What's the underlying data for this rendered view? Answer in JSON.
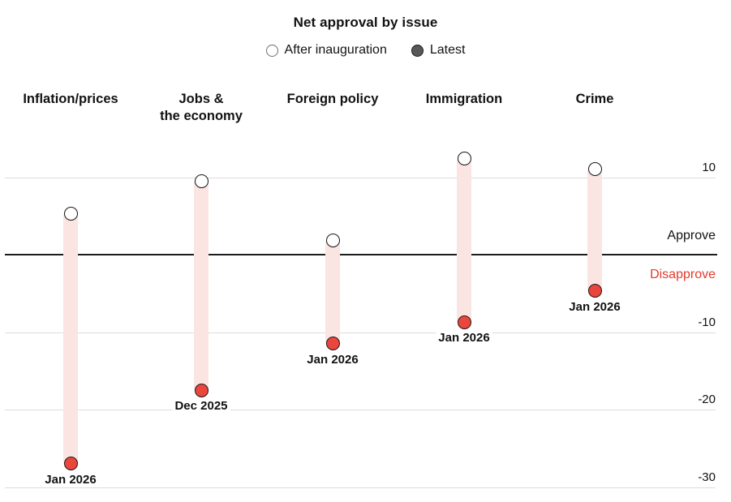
{
  "title": "Net approval by issue",
  "legend": {
    "after_label": "After inauguration",
    "latest_label": "Latest"
  },
  "axis": {
    "yticks": [
      10,
      -10,
      -20,
      -30
    ],
    "approve_label": "Approve",
    "disapprove_label": "Disapprove"
  },
  "chart_data": {
    "type": "scatter",
    "variant": "dumbbell",
    "title": "Net approval by issue",
    "categories": [
      "Inflation/prices",
      "Jobs &\nthe economy",
      "Foreign policy",
      "Immigration",
      "Crime"
    ],
    "series": [
      {
        "name": "After inauguration",
        "values": [
          5.3,
          9.5,
          1.8,
          12.4,
          11.0
        ]
      },
      {
        "name": "Latest",
        "values": [
          -27.0,
          -17.5,
          -11.5,
          -8.7,
          -4.7
        ]
      }
    ],
    "point_labels": [
      "Jan 2026",
      "Dec 2025",
      "Jan 2026",
      "Jan 2026",
      "Jan 2026"
    ],
    "ylim": [
      -32,
      14
    ],
    "yticks": [
      10,
      -10,
      -20,
      -30
    ],
    "zero_line": 0,
    "zone_labels": {
      "above": "Approve",
      "below": "Disapprove"
    },
    "legend_position": "top",
    "grid": true
  },
  "colors": {
    "latest_dot": "#e9473d",
    "band": "#fbe5e2",
    "gridline": "#dcdcdc",
    "zero_line": "#1c1c1c",
    "text": "#121212",
    "disapprove_text": "#e33b2e",
    "legend_latest_dot": "#58585a"
  }
}
